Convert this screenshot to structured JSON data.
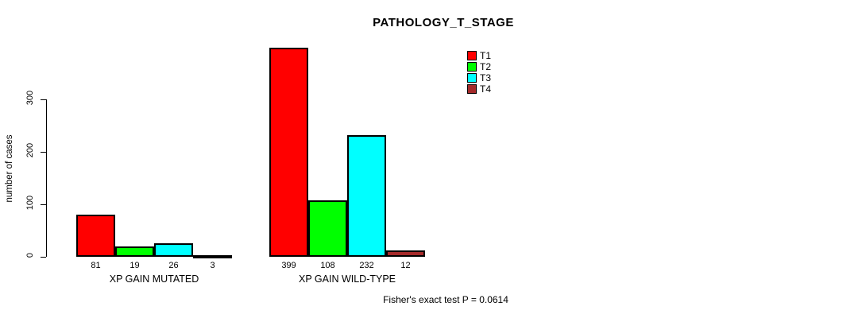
{
  "chart_data": {
    "type": "bar",
    "title": "PATHOLOGY_T_STAGE",
    "xlabel": "",
    "ylabel": "number of cases",
    "categories": [
      "XP GAIN MUTATED",
      "XP GAIN WILD-TYPE"
    ],
    "series": [
      {
        "name": "T1",
        "color": "#FF0000",
        "values": [
          81,
          399
        ]
      },
      {
        "name": "T2",
        "color": "#00FF00",
        "values": [
          19,
          108
        ]
      },
      {
        "name": "T3",
        "color": "#00FFFF",
        "values": [
          26,
          232
        ]
      },
      {
        "name": "T4",
        "color": "#A52A2A",
        "values": [
          3,
          12
        ]
      }
    ],
    "yticks": [
      0,
      100,
      200,
      300
    ],
    "ylim": [
      0,
      410
    ],
    "grid": false,
    "bar_value_labels_shown": true,
    "legend_position": "top-right",
    "legend_items": [
      "T1",
      "T2",
      "T3",
      "T4"
    ],
    "annotation": "Fisher's exact test P = 0.0614"
  }
}
